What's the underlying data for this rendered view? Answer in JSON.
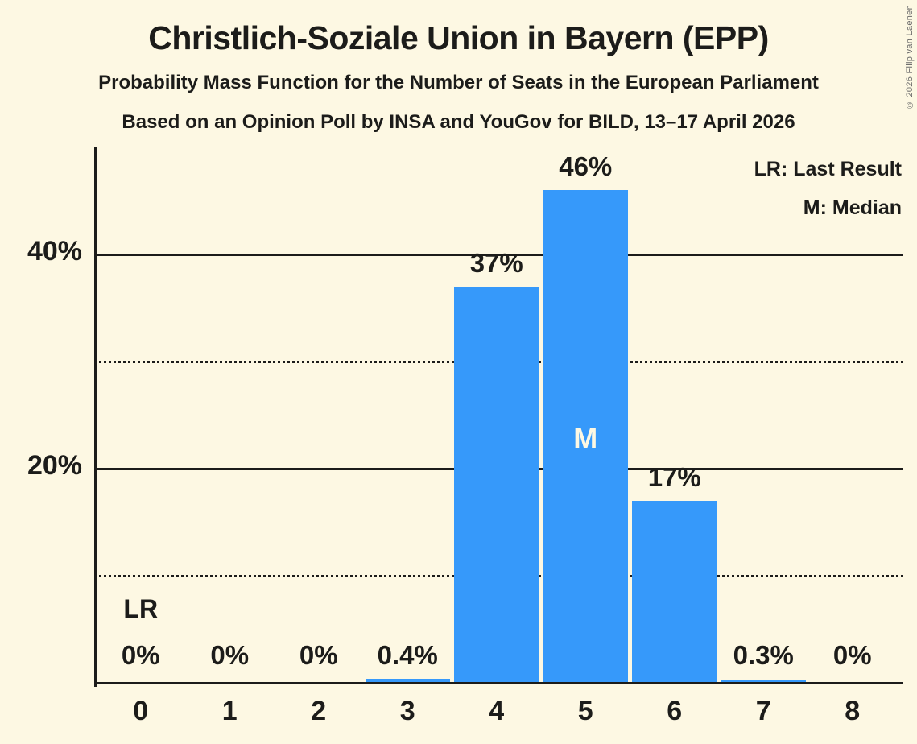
{
  "title": "Christlich-Soziale Union in Bayern (EPP)",
  "subtitle1": "Probability Mass Function for the Number of Seats in the European Parliament",
  "subtitle2": "Based on an Opinion Poll by INSA and YouGov for BILD, 13–17 April 2026",
  "legend": {
    "lr": "LR: Last Result",
    "m": "M: Median"
  },
  "copyright": "© 2026 Filip van Laenen",
  "colors": {
    "background": "#FDF8E3",
    "bar": "#3699FA",
    "text": "#1c1c1a",
    "median_label": "#FDF8E3",
    "copyright": "#6a6a6a"
  },
  "chart_data": {
    "type": "bar",
    "title": "Christlich-Soziale Union in Bayern (EPP)",
    "categories": [
      "0",
      "1",
      "2",
      "3",
      "4",
      "5",
      "6",
      "7",
      "8"
    ],
    "values": [
      0,
      0,
      0,
      0.4,
      37,
      46,
      17,
      0.3,
      0
    ],
    "bar_labels": [
      "0%",
      "0%",
      "0%",
      "0.4%",
      "37%",
      "46%",
      "17%",
      "0.3%",
      "0%"
    ],
    "xlabel": "",
    "ylabel": "",
    "ylim": [
      0,
      50
    ],
    "yticks": [
      {
        "value": 20,
        "label": "20%"
      },
      {
        "value": 40,
        "label": "40%"
      }
    ],
    "solid_gridlines": [
      20,
      40
    ],
    "dotted_gridlines": [
      10,
      30
    ],
    "grid": true,
    "legend_position": "top-right",
    "annotations": {
      "last_result": {
        "seat_index": 0,
        "label": "LR"
      },
      "median": {
        "seat_index": 5,
        "label": "M"
      }
    }
  }
}
